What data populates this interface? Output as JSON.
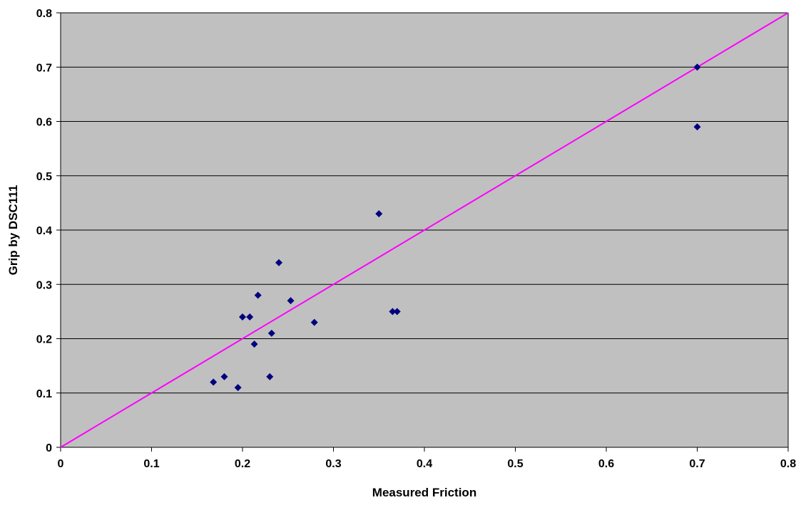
{
  "chart_data": {
    "type": "scatter",
    "title": "",
    "xlabel": "Measured Friction",
    "ylabel": "Grip by DSC111",
    "xlim": [
      0,
      0.8
    ],
    "ylim": [
      0,
      0.8
    ],
    "x_ticks": [
      "0",
      "0.1",
      "0.2",
      "0.3",
      "0.4",
      "0.5",
      "0.6",
      "0.7",
      "0.8"
    ],
    "y_ticks": [
      "0",
      "0.1",
      "0.2",
      "0.3",
      "0.4",
      "0.5",
      "0.6",
      "0.7",
      "0.8"
    ],
    "grid": "horizontal",
    "legend": "none",
    "series": [
      {
        "marker": "diamond",
        "color": "#000080",
        "points": [
          {
            "x": 0.168,
            "y": 0.12
          },
          {
            "x": 0.18,
            "y": 0.13
          },
          {
            "x": 0.195,
            "y": 0.11
          },
          {
            "x": 0.2,
            "y": 0.24
          },
          {
            "x": 0.208,
            "y": 0.24
          },
          {
            "x": 0.213,
            "y": 0.19
          },
          {
            "x": 0.217,
            "y": 0.28
          },
          {
            "x": 0.23,
            "y": 0.13
          },
          {
            "x": 0.232,
            "y": 0.21
          },
          {
            "x": 0.24,
            "y": 0.34
          },
          {
            "x": 0.253,
            "y": 0.27
          },
          {
            "x": 0.279,
            "y": 0.23
          },
          {
            "x": 0.35,
            "y": 0.43
          },
          {
            "x": 0.365,
            "y": 0.25
          },
          {
            "x": 0.37,
            "y": 0.25
          },
          {
            "x": 0.7,
            "y": 0.7
          },
          {
            "x": 0.7,
            "y": 0.59
          }
        ]
      }
    ],
    "reference_line": {
      "x": [
        0,
        0.8
      ],
      "y": [
        0,
        0.8
      ],
      "color": "#ff00ff"
    },
    "plot_background": "#c0c0c0",
    "gridline_color": "#000000"
  }
}
